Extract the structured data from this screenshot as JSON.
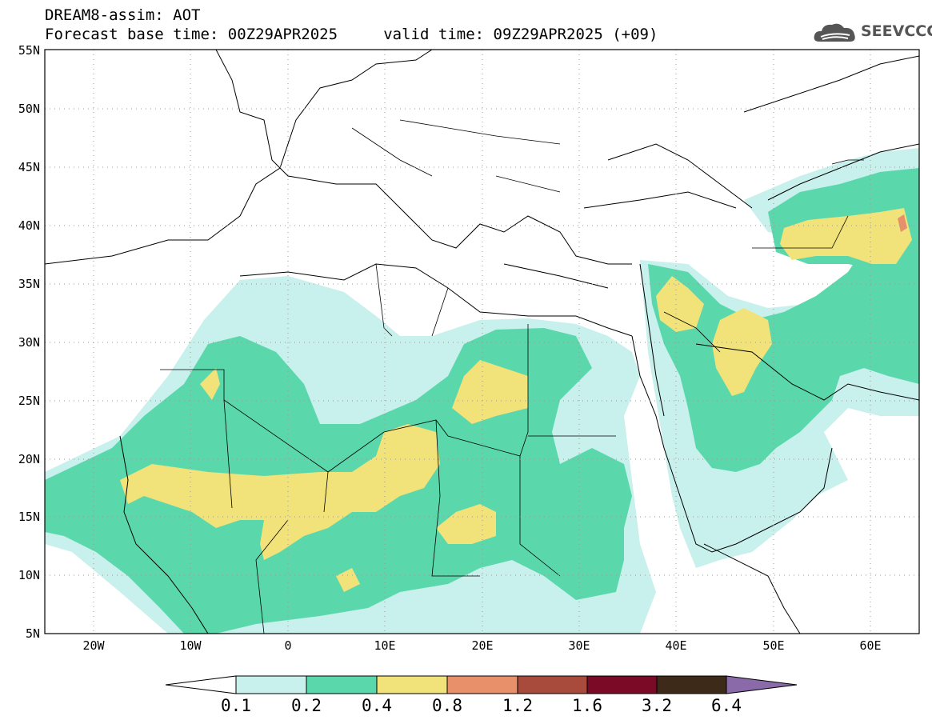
{
  "header": {
    "title_line1": "DREAM8-assim: AOT",
    "title_line2": "Forecast base time: 00Z29APR2025     valid time: 09Z29APR2025 (+09)"
  },
  "logo": {
    "text": "SEEVCCC",
    "icon": "cloud-icon"
  },
  "map": {
    "lat_labels": [
      "55N",
      "50N",
      "45N",
      "40N",
      "35N",
      "30N",
      "25N",
      "20N",
      "15N",
      "10N",
      "5N"
    ],
    "lon_labels": [
      "20W",
      "10W",
      "0",
      "10E",
      "20E",
      "30E",
      "40E",
      "50E",
      "60E"
    ],
    "lat_range": [
      5,
      55
    ],
    "lon_range": [
      -25,
      65
    ],
    "grid": "dotted"
  },
  "colorbar": {
    "labels": [
      "0.1",
      "0.2",
      "0.4",
      "0.8",
      "1.2",
      "1.6",
      "3.2",
      "6.4"
    ],
    "colors": [
      "#ffffff",
      "#c8f0ec",
      "#5ad8ac",
      "#f2e27a",
      "#e8906a",
      "#a84a3c",
      "#7a0a26",
      "#3e2a18",
      "#8a6aa8"
    ]
  },
  "levels_colors": {
    "c1": "#c8f0ec",
    "c2": "#5ad8ac",
    "c3": "#f2e27a",
    "c4": "#e8906a"
  }
}
